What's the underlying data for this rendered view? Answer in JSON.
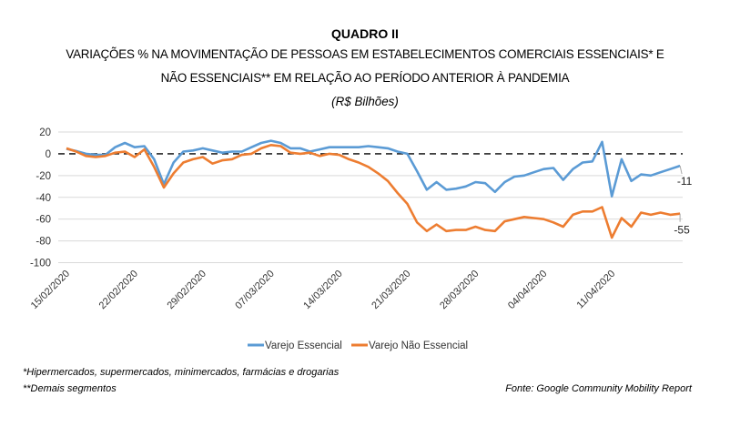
{
  "chart_data": {
    "type": "line",
    "title": "QUADRO II",
    "subtitle_lines": [
      "VARIAÇÕES % NA MOVIMENTAÇÃO DE PESSOAS EM ESTABELECIMENTOS COMERCIAIS ESSENCIAIS* E",
      "NÃO ESSENCIAIS** EM RELAÇÃO AO PERÍODO ANTERIOR À PANDEMIA"
    ],
    "unit": "(R$ Bilhões)",
    "ylim": [
      -100,
      20
    ],
    "yticks": [
      "20",
      "0",
      "-20",
      "-40",
      "-60",
      "-80",
      "-100"
    ],
    "ytick_values": [
      20,
      0,
      -20,
      -40,
      -60,
      -80,
      -100
    ],
    "xtick_labels": [
      "15/02/2020",
      "22/02/2020",
      "29/02/2020",
      "07/03/2020",
      "14/03/2020",
      "21/03/2020",
      "28/03/2020",
      "04/04/2020",
      "11/04/2020"
    ],
    "grid": true,
    "reference_line": {
      "value": 0,
      "style": "dashed",
      "color": "#000000"
    },
    "legend": "bottom",
    "x": [
      "15/02",
      "16/02",
      "17/02",
      "18/02",
      "19/02",
      "20/02",
      "21/02",
      "22/02",
      "23/02",
      "24/02",
      "25/02",
      "26/02",
      "27/02",
      "28/02",
      "29/02",
      "01/03",
      "02/03",
      "03/03",
      "04/03",
      "05/03",
      "06/03",
      "07/03",
      "08/03",
      "09/03",
      "10/03",
      "11/03",
      "12/03",
      "13/03",
      "14/03",
      "15/03",
      "16/03",
      "17/03",
      "18/03",
      "19/03",
      "20/03",
      "21/03",
      "22/03",
      "23/03",
      "24/03",
      "25/03",
      "26/03",
      "27/03",
      "28/03",
      "29/03",
      "30/03",
      "31/03",
      "01/04",
      "02/04",
      "03/04",
      "04/04",
      "05/04",
      "06/04",
      "07/04",
      "08/04",
      "09/04",
      "10/04",
      "11/04",
      "12/04",
      "13/04",
      "14/04",
      "15/04",
      "16/04",
      "17/04",
      "18/04"
    ],
    "series": [
      {
        "name": "Varejo Essencial",
        "color": "#5B9BD5",
        "values": [
          4.5,
          2.5,
          0,
          -1,
          -1,
          6,
          10,
          6,
          7,
          -5,
          -28,
          -8,
          2,
          3,
          5,
          3,
          1,
          2,
          2,
          6,
          10,
          12,
          10,
          5,
          5,
          2,
          4,
          6,
          6,
          6,
          6,
          7,
          6,
          5,
          2,
          0,
          -16,
          -33,
          -26,
          -33,
          -32,
          -30,
          -26,
          -27,
          -35,
          -26,
          -21,
          -20,
          -17,
          -14,
          -13,
          -24,
          -14,
          -8,
          -7,
          11,
          -39,
          -5,
          -25,
          -19,
          -20,
          -17,
          -14,
          -11
        ],
        "end_label": "-11"
      },
      {
        "name": "Varejo Não Essencial",
        "color": "#ED7D31",
        "values": [
          5,
          2,
          -2,
          -3,
          -2,
          1,
          2,
          -3,
          4,
          -12,
          -31,
          -18,
          -8,
          -5,
          -3,
          -9,
          -6,
          -5,
          -1,
          0,
          5,
          8,
          7,
          1,
          0,
          1,
          -2,
          0,
          -1,
          -5,
          -8,
          -12,
          -18,
          -25,
          -36,
          -46,
          -63,
          -71,
          -65,
          -71,
          -70,
          -70,
          -67,
          -70,
          -71,
          -62,
          -60,
          -58,
          -59,
          -60,
          -63,
          -67,
          -56,
          -53,
          -53,
          -49,
          -77,
          -59,
          -67,
          -54,
          -56,
          -54,
          -56,
          -55
        ],
        "end_label": "-55"
      }
    ]
  },
  "footnotes": {
    "note1": "*Hipermercados, supermercados, minimercados, farmácias e drogarias",
    "note2": "**Demais segmentos",
    "source": "Fonte: Google Community Mobility Report"
  }
}
